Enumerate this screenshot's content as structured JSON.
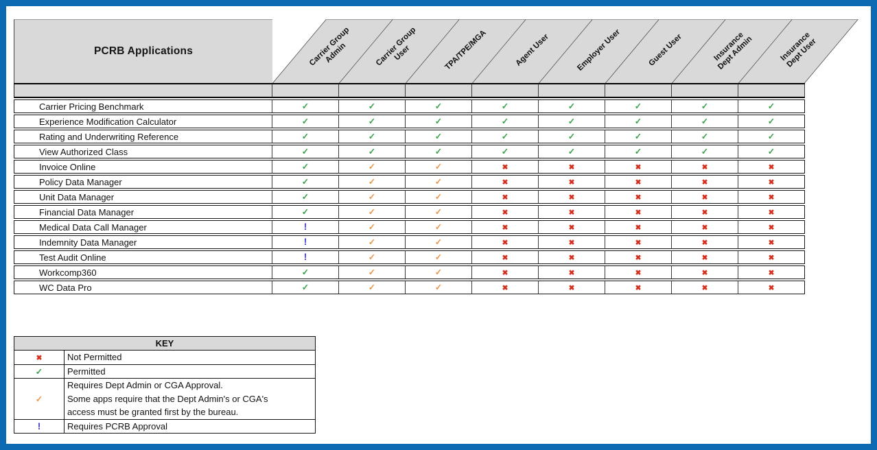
{
  "colors": {
    "frame_blue": "#0b6ab2",
    "header_gray": "#d9d9d9",
    "permitted_green": "#3fa24e",
    "approval_orange": "#e8994e",
    "not_permitted_red": "#d5301d",
    "pcrb_blue": "#3a3ad0"
  },
  "symbols": {
    "permitted": {
      "glyph": "✓",
      "color": "#3fa24e",
      "meaning": "Permitted"
    },
    "approval": {
      "glyph": "✓",
      "color": "#e8994e",
      "meaning": "Requires Dept Admin or CGA Approval"
    },
    "not_permitted": {
      "glyph": "✖",
      "color": "#d5301d",
      "meaning": "Not Permitted"
    },
    "pcrb": {
      "glyph": "!",
      "color": "#3a3ad0",
      "meaning": "Requires PCRB Approval"
    }
  },
  "matrix": {
    "title": "PCRB Applications",
    "columns": [
      {
        "label": "Carrier Group Admin",
        "lines": [
          "Carrier Group",
          "Admin"
        ]
      },
      {
        "label": "Carrier Group User",
        "lines": [
          "Carrier Group",
          "User"
        ]
      },
      {
        "label": "TPA/TPE/MGA",
        "lines": [
          "TPA/TPE/MGA"
        ]
      },
      {
        "label": "Agent User",
        "lines": [
          "Agent User"
        ]
      },
      {
        "label": "Employer User",
        "lines": [
          "Employer User"
        ]
      },
      {
        "label": "Guest User",
        "lines": [
          "Guest User"
        ]
      },
      {
        "label": "Insurance Dept Admin",
        "lines": [
          "Insurance",
          "Dept Admin"
        ]
      },
      {
        "label": "Insurance Dept User",
        "lines": [
          "Insurance",
          "Dept User"
        ]
      }
    ],
    "rows": [
      {
        "app": "Carrier Pricing Benchmark",
        "marks": [
          "permitted",
          "permitted",
          "permitted",
          "permitted",
          "permitted",
          "permitted",
          "permitted",
          "permitted"
        ]
      },
      {
        "app": "Experience Modification Calculator",
        "marks": [
          "permitted",
          "permitted",
          "permitted",
          "permitted",
          "permitted",
          "permitted",
          "permitted",
          "permitted"
        ]
      },
      {
        "app": "Rating and Underwriting Reference",
        "marks": [
          "permitted",
          "permitted",
          "permitted",
          "permitted",
          "permitted",
          "permitted",
          "permitted",
          "permitted"
        ]
      },
      {
        "app": "View Authorized Class",
        "marks": [
          "permitted",
          "permitted",
          "permitted",
          "permitted",
          "permitted",
          "permitted",
          "permitted",
          "permitted"
        ]
      },
      {
        "app": "Invoice Online",
        "marks": [
          "permitted",
          "approval",
          "approval",
          "not_permitted",
          "not_permitted",
          "not_permitted",
          "not_permitted",
          "not_permitted"
        ]
      },
      {
        "app": "Policy Data Manager",
        "marks": [
          "permitted",
          "approval",
          "approval",
          "not_permitted",
          "not_permitted",
          "not_permitted",
          "not_permitted",
          "not_permitted"
        ]
      },
      {
        "app": "Unit Data Manager",
        "marks": [
          "permitted",
          "approval",
          "approval",
          "not_permitted",
          "not_permitted",
          "not_permitted",
          "not_permitted",
          "not_permitted"
        ]
      },
      {
        "app": "Financial Data Manager",
        "marks": [
          "permitted",
          "approval",
          "approval",
          "not_permitted",
          "not_permitted",
          "not_permitted",
          "not_permitted",
          "not_permitted"
        ]
      },
      {
        "app": "Medical Data Call Manager",
        "marks": [
          "pcrb",
          "approval",
          "approval",
          "not_permitted",
          "not_permitted",
          "not_permitted",
          "not_permitted",
          "not_permitted"
        ]
      },
      {
        "app": "Indemnity Data Manager",
        "marks": [
          "pcrb",
          "approval",
          "approval",
          "not_permitted",
          "not_permitted",
          "not_permitted",
          "not_permitted",
          "not_permitted"
        ]
      },
      {
        "app": "Test Audit Online",
        "marks": [
          "pcrb",
          "approval",
          "approval",
          "not_permitted",
          "not_permitted",
          "not_permitted",
          "not_permitted",
          "not_permitted"
        ]
      },
      {
        "app": "Workcomp360",
        "marks": [
          "permitted",
          "approval",
          "approval",
          "not_permitted",
          "not_permitted",
          "not_permitted",
          "not_permitted",
          "not_permitted"
        ]
      },
      {
        "app": "WC Data Pro",
        "marks": [
          "permitted",
          "approval",
          "approval",
          "not_permitted",
          "not_permitted",
          "not_permitted",
          "not_permitted",
          "not_permitted"
        ]
      }
    ]
  },
  "key": {
    "title": "KEY",
    "entries": [
      {
        "symbol": "not_permitted",
        "lines": [
          "Not Permitted"
        ]
      },
      {
        "symbol": "permitted",
        "lines": [
          "Permitted"
        ]
      },
      {
        "symbol": "approval",
        "lines": [
          "Requires Dept Admin or CGA Approval.",
          "Some apps require that the Dept Admin's or CGA's",
          "access must be granted first by the bureau."
        ]
      },
      {
        "symbol": "pcrb",
        "lines": [
          "Requires PCRB Approval"
        ]
      }
    ]
  }
}
